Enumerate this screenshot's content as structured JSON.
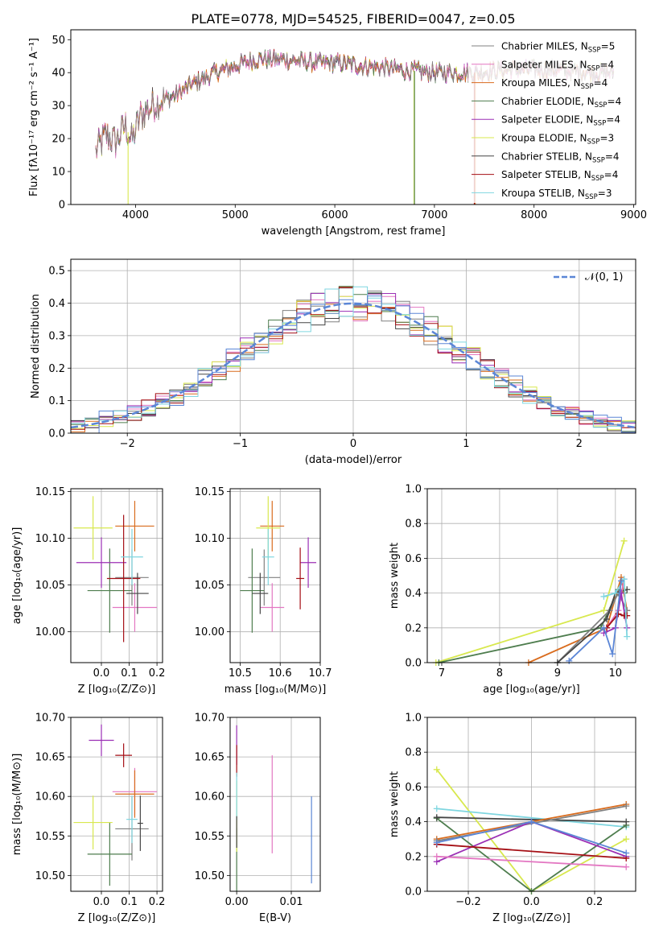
{
  "figure_title": "PLATE=0778, MJD=54525, FIBERID=0047, z=0.05",
  "colors": {
    "Chabrier MILES": "#808080",
    "Salpeter MILES": "#e377c2",
    "Kroupa MILES": "#d96c1e",
    "Chabrier ELODIE": "#4e7d4e",
    "Salpeter ELODIE": "#9b2fb5",
    "Kroupa ELODIE": "#d8e84e",
    "Chabrier STELIB": "#454545",
    "Salpeter STELIB": "#a50f15",
    "Kroupa STELIB": "#7fd6e0",
    "normal_line": "#5b86d6",
    "grid": "#b0b0b0"
  },
  "chart_data": [
    {
      "id": "spectrum",
      "type": "line",
      "xlabel": "wavelength [Angstrom, rest frame]",
      "ylabel": "Flux [fλ10⁻¹⁷ erg cm⁻² s⁻¹ A⁻¹]",
      "xlim": [
        3350,
        9020
      ],
      "ylim": [
        0,
        53
      ],
      "xticks": [
        4000,
        5000,
        6000,
        7000,
        8000,
        9000
      ],
      "yticks": [
        0,
        10,
        20,
        30,
        40,
        50
      ],
      "grid": false,
      "legend_position": "right",
      "continuum_knots": [
        [
          3600,
          16
        ],
        [
          3700,
          21
        ],
        [
          3800,
          19
        ],
        [
          3900,
          24
        ],
        [
          3960,
          19
        ],
        [
          4050,
          27
        ],
        [
          4200,
          31
        ],
        [
          4400,
          33
        ],
        [
          4600,
          37
        ],
        [
          4800,
          40
        ],
        [
          5000,
          42
        ],
        [
          5200,
          44
        ],
        [
          5500,
          44
        ],
        [
          5800,
          43
        ],
        [
          6000,
          43
        ],
        [
          6300,
          42
        ],
        [
          6600,
          41
        ],
        [
          7000,
          40
        ],
        [
          7400,
          40
        ],
        [
          7800,
          41
        ],
        [
          8200,
          41
        ],
        [
          8600,
          40
        ],
        [
          8800,
          40
        ]
      ],
      "series": [
        {
          "name": "Chabrier MILES, N_SSP=5",
          "name_main": "Chabrier MILES, N",
          "name_sub": "SSP",
          "name_end": "=5"
        },
        {
          "name": "Salpeter MILES, N_SSP=4",
          "name_main": "Salpeter MILES, N",
          "name_sub": "SSP",
          "name_end": "=4"
        },
        {
          "name": "Kroupa MILES, N_SSP=4",
          "name_main": "Kroupa MILES, N",
          "name_sub": "SSP",
          "name_end": "=4"
        },
        {
          "name": "Chabrier ELODIE, N_SSP=4",
          "name_main": "Chabrier ELODIE, N",
          "name_sub": "SSP",
          "name_end": "=4"
        },
        {
          "name": "Salpeter ELODIE, N_SSP=4",
          "name_main": "Salpeter ELODIE, N",
          "name_sub": "SSP",
          "name_end": "=4"
        },
        {
          "name": "Kroupa ELODIE, N_SSP=3",
          "name_main": "Kroupa ELODIE, N",
          "name_sub": "SSP",
          "name_end": "=3"
        },
        {
          "name": "Chabrier STELIB, N_SSP=4",
          "name_main": "Chabrier STELIB, N",
          "name_sub": "SSP",
          "name_end": "=4"
        },
        {
          "name": "Salpeter STELIB, N_SSP=4",
          "name_main": "Salpeter STELIB, N",
          "name_sub": "SSP",
          "name_end": "=4"
        },
        {
          "name": "Kroupa STELIB, N_SSP=3",
          "name_main": "Kroupa STELIB, N",
          "name_sub": "SSP",
          "name_end": "=3"
        }
      ]
    },
    {
      "id": "residuals",
      "type": "histogram",
      "xlabel": "(data-model)/error",
      "ylabel": "Normed distribution",
      "xlim": [
        -2.5,
        2.5
      ],
      "ylim": [
        0,
        0.535
      ],
      "xticks": [
        -2,
        -1,
        0,
        1,
        2
      ],
      "xtick_labels": [
        "−2",
        "−1",
        "0",
        "1",
        "2"
      ],
      "yticks": [
        0,
        0.1,
        0.2,
        0.3,
        0.4,
        0.5
      ],
      "ytick_labels": [
        "0.0",
        "0.1",
        "0.2",
        "0.3",
        "0.4",
        "0.5"
      ],
      "grid": true,
      "bins": 40,
      "legend": {
        "label": "𝒩(0, 1)",
        "position": "top-right"
      }
    },
    {
      "id": "age-vs-Z",
      "type": "errorbar",
      "xlabel": "Z [log₁₀(Z/Z⊙)]",
      "ylabel": "age  [log₁₀(age/yr)]",
      "xlim": [
        -0.11,
        0.22
      ],
      "ylim": [
        9.967,
        10.153
      ],
      "xticks": [
        0.0,
        0.1,
        0.2
      ],
      "xtick_labels": [
        "0.0",
        "0.1",
        "0.2"
      ],
      "yticks": [
        10.0,
        10.05,
        10.1,
        10.15
      ],
      "ytick_labels": [
        "10.00",
        "10.05",
        "10.10",
        "10.15"
      ],
      "grid": true,
      "points": [
        {
          "model": "Chabrier MILES",
          "x": 0.11,
          "xerr": 0.06,
          "y": 10.058,
          "yerr": 0.03
        },
        {
          "model": "Salpeter MILES",
          "x": 0.12,
          "xerr": 0.08,
          "y": 10.026,
          "yerr": 0.026
        },
        {
          "model": "Kroupa MILES",
          "x": 0.12,
          "xerr": 0.07,
          "y": 10.113,
          "yerr": 0.027
        },
        {
          "model": "Chabrier ELODIE",
          "x": 0.03,
          "xerr": 0.08,
          "y": 10.044,
          "yerr": 0.045
        },
        {
          "model": "Salpeter ELODIE",
          "x": 0.0,
          "xerr": 0.09,
          "y": 10.074,
          "yerr": 0.027
        },
        {
          "model": "Kroupa ELODIE",
          "x": -0.03,
          "xerr": 0.07,
          "y": 10.111,
          "yerr": 0.034
        },
        {
          "model": "Chabrier STELIB",
          "x": 0.13,
          "xerr": 0.04,
          "y": 10.041,
          "yerr": 0.022
        },
        {
          "model": "Salpeter STELIB",
          "x": 0.08,
          "xerr": 0.06,
          "y": 10.057,
          "yerr": 0.068
        },
        {
          "model": "Kroupa STELIB",
          "x": 0.11,
          "xerr": 0.04,
          "y": 10.08,
          "yerr": 0.03
        }
      ]
    },
    {
      "id": "age-vs-mass",
      "type": "errorbar",
      "xlabel": "mass [log₁₀(M/M⊙)]",
      "ylabel": "",
      "xlim": [
        10.475,
        10.7
      ],
      "ylim": [
        9.967,
        10.153
      ],
      "xticks": [
        10.5,
        10.6,
        10.7
      ],
      "xtick_labels": [
        "10.5",
        "10.6",
        "10.7"
      ],
      "yticks": [
        10.0,
        10.05,
        10.1,
        10.15
      ],
      "ytick_labels": [
        "10.00",
        "10.05",
        "10.10",
        "10.15"
      ],
      "grid": true,
      "points": [
        {
          "model": "Chabrier MILES",
          "x": 10.56,
          "xerr": 0.04,
          "y": 10.058,
          "yerr": 0.03
        },
        {
          "model": "Salpeter MILES",
          "x": 10.58,
          "xerr": 0.03,
          "y": 10.026,
          "yerr": 0.026
        },
        {
          "model": "Kroupa MILES",
          "x": 10.58,
          "xerr": 0.03,
          "y": 10.113,
          "yerr": 0.027
        },
        {
          "model": "Chabrier ELODIE",
          "x": 10.53,
          "xerr": 0.03,
          "y": 10.044,
          "yerr": 0.045
        },
        {
          "model": "Salpeter ELODIE",
          "x": 10.67,
          "xerr": 0.02,
          "y": 10.074,
          "yerr": 0.027
        },
        {
          "model": "Kroupa ELODIE",
          "x": 10.57,
          "xerr": 0.03,
          "y": 10.111,
          "yerr": 0.034
        },
        {
          "model": "Chabrier STELIB",
          "x": 10.55,
          "xerr": 0.02,
          "y": 10.041,
          "yerr": 0.022
        },
        {
          "model": "Salpeter STELIB",
          "x": 10.65,
          "xerr": 0.01,
          "y": 10.057,
          "yerr": 0.033
        },
        {
          "model": "Kroupa STELIB",
          "x": 10.57,
          "xerr": 0.015,
          "y": 10.08,
          "yerr": 0.03
        }
      ]
    },
    {
      "id": "weight-vs-age",
      "type": "line",
      "xlabel": "age  [log₁₀(age/yr)]",
      "ylabel": "mass weight",
      "xlim": [
        6.75,
        10.35
      ],
      "ylim": [
        0,
        1
      ],
      "xticks": [
        7,
        8,
        9,
        10
      ],
      "xtick_labels": [
        "7",
        "8",
        "9",
        "10"
      ],
      "yticks": [
        0,
        0.2,
        0.4,
        0.6,
        0.8,
        1.0
      ],
      "ytick_labels": [
        "0.0",
        "0.2",
        "0.4",
        "0.6",
        "0.8",
        "1.0"
      ],
      "grid": true,
      "series": [
        {
          "model": "Kroupa ELODIE",
          "points": [
            [
              6.9,
              0.0
            ],
            [
              9.8,
              0.3
            ],
            [
              10.15,
              0.7
            ]
          ]
        },
        {
          "model": "Chabrier ELODIE",
          "points": [
            [
              6.95,
              0.0
            ],
            [
              9.75,
              0.2
            ],
            [
              10.05,
              0.42
            ],
            [
              10.15,
              0.4
            ]
          ]
        },
        {
          "model": "Kroupa MILES",
          "points": [
            [
              8.5,
              0.0
            ],
            [
              9.85,
              0.2
            ],
            [
              10.1,
              0.49
            ],
            [
              10.2,
              0.3
            ]
          ]
        },
        {
          "model": "Chabrier MILES",
          "points": [
            [
              9.0,
              0.0
            ],
            [
              9.9,
              0.3
            ],
            [
              10.05,
              0.4
            ],
            [
              10.2,
              0.3
            ]
          ]
        },
        {
          "model": "Chabrier STELIB",
          "points": [
            [
              9.0,
              0.0
            ],
            [
              9.85,
              0.25
            ],
            [
              10.0,
              0.4
            ],
            [
              10.2,
              0.42
            ]
          ]
        },
        {
          "model": "Salpeter MILES",
          "points": [
            [
              9.85,
              0.2
            ],
            [
              10.05,
              0.3
            ],
            [
              10.15,
              0.48
            ]
          ]
        },
        {
          "model": "Salpeter ELODIE",
          "points": [
            [
              9.8,
              0.17
            ],
            [
              10.0,
              0.2
            ],
            [
              10.1,
              0.4
            ],
            [
              10.2,
              0.2
            ]
          ]
        },
        {
          "model": "Salpeter STELIB",
          "points": [
            [
              9.85,
              0.2
            ],
            [
              10.05,
              0.28
            ],
            [
              10.15,
              0.27
            ],
            [
              10.2,
              0.27
            ]
          ]
        },
        {
          "model": "Kroupa STELIB",
          "points": [
            [
              9.8,
              0.38
            ],
            [
              10.0,
              0.4
            ],
            [
              10.15,
              0.48
            ],
            [
              10.2,
              0.15
            ]
          ]
        }
      ],
      "blue_series": {
        "points": [
          [
            9.2,
            0.01
          ],
          [
            9.8,
            0.2
          ],
          [
            9.95,
            0.05
          ],
          [
            10.1,
            0.47
          ]
        ]
      }
    },
    {
      "id": "mass-vs-Z",
      "type": "errorbar",
      "xlabel": "Z [log₁₀(Z/Z⊙)]",
      "ylabel": "mass [log₁₀(M/M⊙)]",
      "xlim": [
        -0.11,
        0.22
      ],
      "ylim": [
        10.48,
        10.7
      ],
      "xticks": [
        0.0,
        0.1,
        0.2
      ],
      "xtick_labels": [
        "0.0",
        "0.1",
        "0.2"
      ],
      "yticks": [
        10.5,
        10.55,
        10.6,
        10.65,
        10.7
      ],
      "ytick_labels": [
        "10.50",
        "10.55",
        "10.60",
        "10.65",
        "10.70"
      ],
      "grid": true,
      "points": [
        {
          "model": "Chabrier MILES",
          "x": 0.11,
          "xerr": 0.06,
          "y": 10.559,
          "yerr": 0.04
        },
        {
          "model": "Salpeter MILES",
          "x": 0.12,
          "xerr": 0.08,
          "y": 10.606,
          "yerr": 0.03
        },
        {
          "model": "Kroupa MILES",
          "x": 0.12,
          "xerr": 0.07,
          "y": 10.603,
          "yerr": 0.03
        },
        {
          "model": "Chabrier ELODIE",
          "x": 0.03,
          "xerr": 0.08,
          "y": 10.527,
          "yerr": 0.04
        },
        {
          "model": "Salpeter ELODIE",
          "x": 0.0,
          "xerr": 0.045,
          "y": 10.671,
          "yerr": 0.02
        },
        {
          "model": "Kroupa ELODIE",
          "x": -0.03,
          "xerr": 0.07,
          "y": 10.567,
          "yerr": 0.034
        },
        {
          "model": "Chabrier STELIB",
          "x": 0.14,
          "xerr": 0.01,
          "y": 10.566,
          "yerr": 0.035
        },
        {
          "model": "Salpeter STELIB",
          "x": 0.08,
          "xerr": 0.03,
          "y": 10.652,
          "yerr": 0.015
        },
        {
          "model": "Kroupa STELIB",
          "x": 0.11,
          "xerr": 0.02,
          "y": 10.571,
          "yerr": 0.03
        }
      ]
    },
    {
      "id": "mass-vs-ebv",
      "type": "errorbar",
      "xlabel": "E(B-V)",
      "ylabel": "",
      "xlim": [
        -0.0012,
        0.0153
      ],
      "ylim": [
        10.48,
        10.7
      ],
      "xticks": [
        0.0,
        0.01
      ],
      "xtick_labels": [
        "0.00",
        "0.01"
      ],
      "yticks": [
        10.5,
        10.55,
        10.6,
        10.65,
        10.7
      ],
      "ytick_labels": [
        "10.50",
        "10.55",
        "10.60",
        "10.65",
        "10.70"
      ],
      "grid": true,
      "points": [
        {
          "model": "Salpeter MILES",
          "x": 0.0065,
          "y": 10.59,
          "yerr": 0.062
        },
        {
          "model": "blue",
          "x": 0.0137,
          "y": 10.545,
          "yerr": 0.055
        },
        {
          "model": "Chabrier ELODIE",
          "x": 0.0,
          "y": 10.52,
          "yerr": 0.04
        },
        {
          "model": "Salpeter ELODIE",
          "x": 0.0,
          "y": 10.665,
          "yerr": 0.025
        },
        {
          "model": "Kroupa ELODIE",
          "x": 0.0,
          "y": 10.575,
          "yerr": 0.045
        },
        {
          "model": "Salpeter STELIB",
          "x": 0.0,
          "y": 10.645,
          "yerr": 0.02
        },
        {
          "model": "Kroupa STELIB",
          "x": 0.0,
          "y": 10.6,
          "yerr": 0.03
        },
        {
          "model": "Chabrier STELIB",
          "x": 0.0,
          "y": 10.555,
          "yerr": 0.02
        }
      ]
    },
    {
      "id": "weight-vs-Z",
      "type": "line",
      "xlabel": "Z [log₁₀(Z/Z⊙)]",
      "ylabel": "mass weight",
      "xlim": [
        -0.33,
        0.33
      ],
      "ylim": [
        0,
        1
      ],
      "xticks": [
        -0.2,
        0.0,
        0.2
      ],
      "xtick_labels": [
        "−0.2",
        "0.0",
        "0.2"
      ],
      "yticks": [
        0,
        0.2,
        0.4,
        0.6,
        0.8,
        1.0
      ],
      "ytick_labels": [
        "0.0",
        "0.2",
        "0.4",
        "0.6",
        "0.8",
        "1.0"
      ],
      "grid": true,
      "series": [
        {
          "model": "Kroupa ELODIE",
          "points": [
            [
              -0.3,
              0.7
            ],
            [
              0.0,
              0.0
            ],
            [
              0.3,
              0.3
            ]
          ]
        },
        {
          "model": "Kroupa STELIB",
          "points": [
            [
              -0.3,
              0.475
            ],
            [
              0.3,
              0.37
            ]
          ]
        },
        {
          "model": "Chabrier ELODIE",
          "points": [
            [
              -0.3,
              0.42
            ],
            [
              0.0,
              0.0
            ],
            [
              0.3,
              0.38
            ]
          ]
        },
        {
          "model": "Chabrier STELIB",
          "points": [
            [
              -0.3,
              0.425
            ],
            [
              0.3,
              0.4
            ]
          ]
        },
        {
          "model": "Kroupa MILES",
          "points": [
            [
              -0.3,
              0.3
            ],
            [
              0.3,
              0.5
            ]
          ]
        },
        {
          "model": "Chabrier MILES",
          "points": [
            [
              -0.3,
              0.29
            ],
            [
              0.3,
              0.49
            ]
          ]
        },
        {
          "model": "Salpeter ELODIE",
          "points": [
            [
              -0.3,
              0.17
            ],
            [
              0.0,
              0.4
            ],
            [
              0.3,
              0.2
            ]
          ]
        },
        {
          "model": "Salpeter MILES",
          "points": [
            [
              -0.3,
              0.2
            ],
            [
              0.3,
              0.14
            ]
          ]
        },
        {
          "model": "Salpeter STELIB",
          "points": [
            [
              -0.3,
              0.27
            ],
            [
              0.3,
              0.19
            ]
          ]
        }
      ],
      "blue_series": {
        "points": [
          [
            -0.3,
            0.28
          ],
          [
            0.0,
            0.4
          ],
          [
            0.3,
            0.22
          ]
        ]
      }
    }
  ]
}
